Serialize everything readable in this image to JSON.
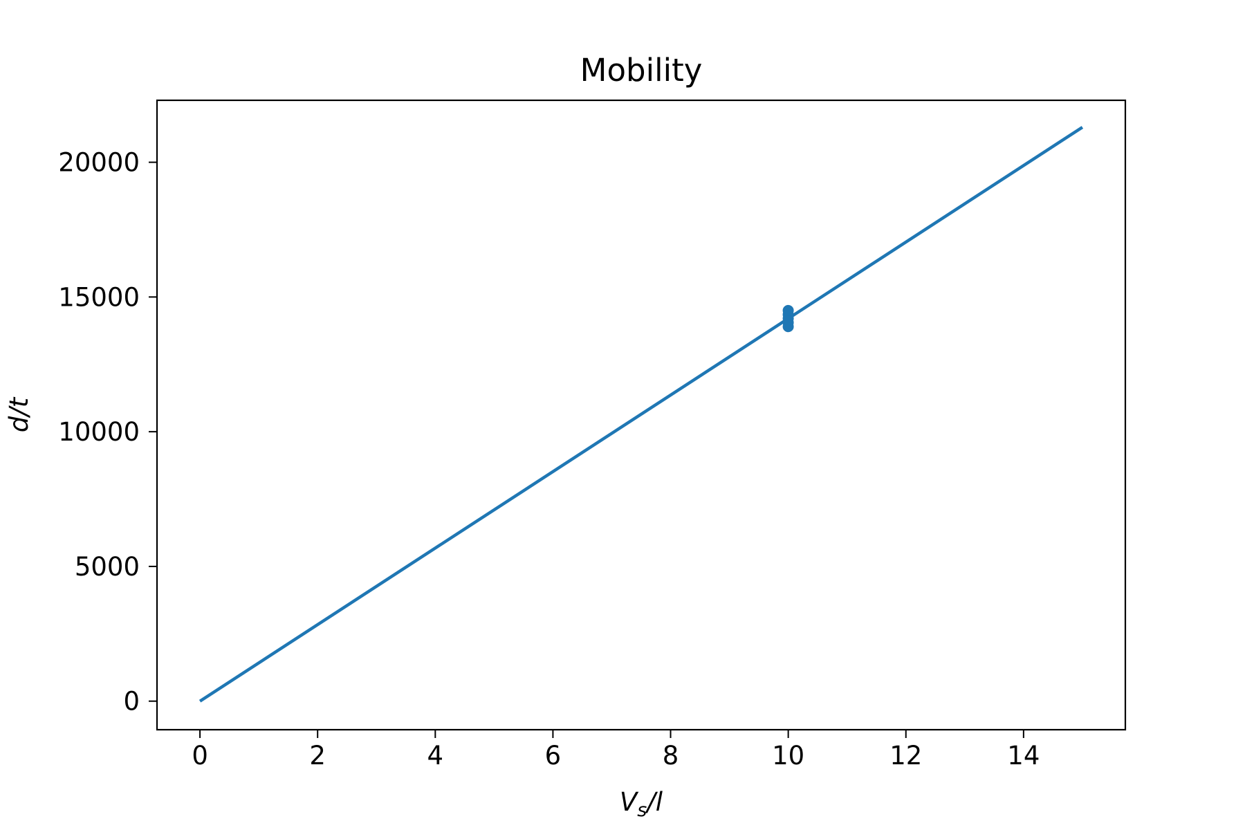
{
  "chart_data": {
    "type": "line",
    "title": "Mobility",
    "xlabel": {
      "main": "V",
      "sub": "s",
      "rest": "/l"
    },
    "ylabel": "d/t",
    "xlim": [
      -0.73,
      15.73
    ],
    "ylim": [
      -1060,
      22300
    ],
    "xticks": [
      0,
      2,
      4,
      6,
      8,
      10,
      12,
      14
    ],
    "yticks": [
      0,
      5000,
      10000,
      15000,
      20000
    ],
    "grid": false,
    "series": [
      {
        "kind": "line",
        "color": "#1f77b4",
        "x": [
          0,
          15
        ],
        "y": [
          0,
          21300
        ]
      },
      {
        "kind": "scatter",
        "color": "#1f77b4",
        "x": [
          10,
          10,
          10,
          10,
          10
        ],
        "y": [
          13900,
          14050,
          14200,
          14350,
          14500
        ]
      }
    ]
  }
}
